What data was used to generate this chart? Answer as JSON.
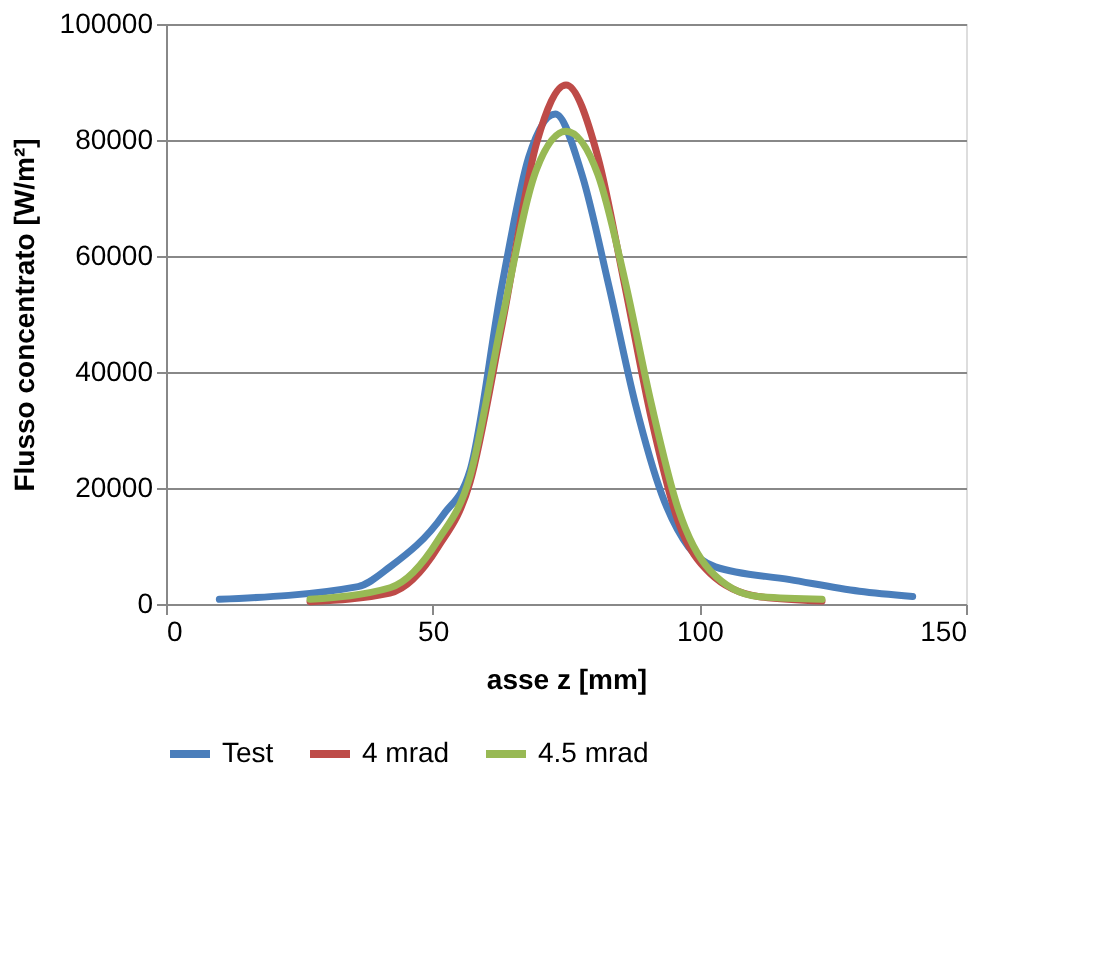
{
  "chart_data": {
    "type": "line",
    "xlabel": "asse z [mm]",
    "ylabel": "Flusso concentrato [W/m²]",
    "xlim": [
      0,
      150
    ],
    "xticks": [
      0,
      50,
      100,
      150
    ],
    "ylim": [
      0,
      100000
    ],
    "yticks": [
      0,
      20000,
      40000,
      60000,
      80000,
      100000
    ],
    "grid": "y",
    "legend": "bottom",
    "marker": "none",
    "line_style": "solid",
    "series": [
      {
        "name": "Test",
        "color": "#4a7ebb",
        "x": [
          10,
          36,
          42,
          52,
          57,
          63,
          68,
          73,
          78,
          83,
          88,
          93,
          98,
          103,
          117,
          130,
          140
        ],
        "values": [
          800,
          3000,
          6400,
          15400,
          23000,
          55000,
          77000,
          84500,
          74000,
          55000,
          34500,
          18800,
          9800,
          6400,
          4200,
          2200,
          1300
        ]
      },
      {
        "name": "4 mrad",
        "color": "#be4b48",
        "x": [
          27,
          42,
          51,
          57,
          63,
          69.5,
          75,
          81,
          86,
          91,
          96,
          102,
          111,
          123
        ],
        "values": [
          400,
          1900,
          9800,
          21000,
          48000,
          79500,
          89500,
          77000,
          55000,
          32000,
          14300,
          5300,
          1300,
          500
        ]
      },
      {
        "name": "4.5 mrad",
        "color": "#98b954",
        "x": [
          27,
          42,
          51,
          57,
          63,
          69.5,
          75,
          81,
          86,
          91,
          96,
          102,
          111,
          123
        ],
        "values": [
          800,
          2800,
          11000,
          22000,
          49000,
          75000,
          81500,
          74000,
          56000,
          34500,
          16500,
          5800,
          1300,
          800
        ]
      }
    ]
  }
}
